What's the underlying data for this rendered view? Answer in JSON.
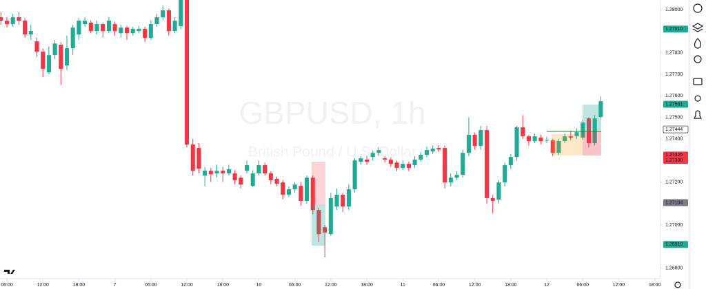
{
  "symbol_title": "GBPUSD, 1h",
  "symbol_description": "British Pound / U.S. Dollar",
  "chart_data": {
    "type": "candlestick",
    "up_color": "#22ab94",
    "down_color": "#f23645",
    "open": [
      1.27965,
      1.27949,
      1.27933,
      1.27965,
      1.27949,
      1.27885,
      1.27853,
      1.27805,
      1.27709,
      1.27789,
      1.27837,
      1.27741,
      1.27821,
      1.27885,
      1.27933,
      1.2794,
      1.27901,
      1.27933,
      1.27901,
      1.27933,
      1.27891,
      1.27917,
      1.27891,
      1.27901,
      1.27911,
      1.27869,
      1.27933,
      1.27965,
      1.27997,
      1.27901,
      1.27923,
      1.28045,
      1.27374,
      1.27358,
      1.2723,
      1.27252,
      1.2724,
      1.27252,
      1.2724,
      1.2724,
      1.2722,
      1.27252,
      1.27182,
      1.2724,
      1.27278,
      1.2724,
      1.27215,
      1.27198,
      1.27141,
      1.27166,
      1.27182,
      1.27112,
      1.2722,
      1.2707,
      1.2699,
      1.26958,
      1.27086,
      1.27141,
      1.27086,
      1.27166,
      1.27294,
      1.27304,
      1.27316,
      1.27335,
      1.2731,
      1.27304,
      1.2729,
      1.27265,
      1.27284,
      1.27278,
      1.27304,
      1.27326,
      1.27342,
      1.27358,
      1.27358,
      1.27198,
      1.2722,
      1.27233,
      1.27335,
      1.27419,
      1.27367,
      1.27441,
      1.27125,
      1.27118,
      1.27198,
      1.27278,
      1.27316,
      1.27454,
      1.27412,
      1.2739,
      1.27406,
      1.27393,
      1.27393,
      1.27335,
      1.2739,
      1.27412,
      1.27412,
      1.27406,
      1.27495,
      1.2738,
      1.27502
    ],
    "high": [
      1.2799,
      1.27965,
      1.27981,
      1.2799,
      1.2796,
      1.2793,
      1.2787,
      1.2782,
      1.2783,
      1.2786,
      1.2785,
      1.2788,
      1.2793,
      1.2796,
      1.27965,
      1.2795,
      1.2795,
      1.2794,
      1.27965,
      1.27945,
      1.2793,
      1.27925,
      1.2792,
      1.27925,
      1.2792,
      1.2795,
      1.2798,
      1.2802,
      1.28005,
      1.27965,
      1.28045,
      1.28045,
      1.274,
      1.2738,
      1.2727,
      1.27265,
      1.2728,
      1.2727,
      1.2728,
      1.27255,
      1.2723,
      1.273,
      1.27255,
      1.273,
      1.2729,
      1.2725,
      1.27225,
      1.2721,
      1.2718,
      1.272,
      1.272,
      1.2723,
      1.2723,
      1.2708,
      1.27,
      1.2715,
      1.2717,
      1.2715,
      1.2719,
      1.2731,
      1.2732,
      1.2732,
      1.27345,
      1.2736,
      1.2732,
      1.27315,
      1.273,
      1.273,
      1.27295,
      1.2732,
      1.2734,
      1.27365,
      1.2737,
      1.2737,
      1.2737,
      1.2724,
      1.2725,
      1.2735,
      1.275,
      1.2743,
      1.2746,
      1.2746,
      1.2714,
      1.2721,
      1.2729,
      1.2733,
      1.2746,
      1.2751,
      1.2742,
      1.27425,
      1.2742,
      1.2741,
      1.274,
      1.274,
      1.27425,
      1.2744,
      1.2745,
      1.2749,
      1.275,
      1.2751,
      1.27597
    ],
    "low": [
      1.2793,
      1.27917,
      1.2792,
      1.2793,
      1.2787,
      1.2786,
      1.2778,
      1.27687,
      1.277,
      1.2777,
      1.2765,
      1.2772,
      1.2779,
      1.2786,
      1.2792,
      1.2789,
      1.27885,
      1.2787,
      1.2789,
      1.2788,
      1.2787,
      1.2786,
      1.2788,
      1.2789,
      1.2785,
      1.2786,
      1.2792,
      1.2795,
      1.2788,
      1.2789,
      1.2791,
      1.2736,
      1.2723,
      1.2724,
      1.2718,
      1.272,
      1.2722,
      1.272,
      1.2723,
      1.2719,
      1.2717,
      1.2724,
      1.27175,
      1.2723,
      1.2723,
      1.2719,
      1.2718,
      1.2712,
      1.2713,
      1.2715,
      1.2709,
      1.271,
      1.2705,
      1.2692,
      1.2685,
      1.2695,
      1.2707,
      1.2706,
      1.2707,
      1.2715,
      1.2728,
      1.2728,
      1.273,
      1.2732,
      1.2729,
      1.2727,
      1.2725,
      1.27255,
      1.2725,
      1.27265,
      1.27295,
      1.27315,
      1.2733,
      1.2734,
      1.2717,
      1.2718,
      1.2721,
      1.2722,
      1.2732,
      1.2735,
      1.2735,
      1.271,
      1.27054,
      1.271,
      1.2718,
      1.2726,
      1.273,
      1.274,
      1.2737,
      1.2738,
      1.27375,
      1.2738,
      1.2732,
      1.27325,
      1.2738,
      1.27395,
      1.274,
      1.27395,
      1.2736,
      1.2737,
      1.27495
    ],
    "close": [
      1.27949,
      1.27933,
      1.27965,
      1.27949,
      1.27885,
      1.27901,
      1.27805,
      1.27725,
      1.27789,
      1.27843,
      1.27725,
      1.27821,
      1.27917,
      1.27949,
      1.27949,
      1.27901,
      1.27933,
      1.27901,
      1.27949,
      1.27901,
      1.27917,
      1.27891,
      1.27911,
      1.27911,
      1.27869,
      1.27933,
      1.27965,
      1.27997,
      1.27901,
      1.27949,
      1.28045,
      1.27374,
      1.27252,
      1.27262,
      1.27252,
      1.27236,
      1.27252,
      1.2724,
      1.27259,
      1.27208,
      1.27188,
      1.27278,
      1.2724,
      1.27278,
      1.2724,
      1.27208,
      1.27192,
      1.27141,
      1.27166,
      1.27188,
      1.27112,
      1.2722,
      1.2707,
      1.26958,
      1.26965,
      1.27125,
      1.27141,
      1.27086,
      1.27166,
      1.273,
      1.2731,
      1.27294,
      1.27335,
      1.27348,
      1.27304,
      1.27284,
      1.27265,
      1.27284,
      1.27265,
      1.27304,
      1.27326,
      1.27348,
      1.27355,
      1.27351,
      1.27198,
      1.2722,
      1.27233,
      1.27335,
      1.27419,
      1.27367,
      1.27441,
      1.27125,
      1.27112,
      1.27198,
      1.27278,
      1.27316,
      1.27454,
      1.27412,
      1.2739,
      1.27412,
      1.2739,
      1.27395,
      1.27335,
      1.2739,
      1.27412,
      1.27406,
      1.27431,
      1.27476,
      1.2738,
      1.27495,
      1.27575
    ],
    "xlim": [
      -0.15,
      109.96
    ],
    "ylim": [
      1.26751,
      1.28045
    ],
    "xticks": [
      {
        "value": 1,
        "label": "06:00"
      },
      {
        "value": 7,
        "label": "12:00"
      },
      {
        "value": 13,
        "label": "18:00"
      },
      {
        "value": 19,
        "label": "7"
      },
      {
        "value": 25,
        "label": "06:00"
      },
      {
        "value": 31,
        "label": "12:00"
      },
      {
        "value": 37,
        "label": "18:00"
      },
      {
        "value": 43,
        "label": "10"
      },
      {
        "value": 49,
        "label": "06:00"
      },
      {
        "value": 55,
        "label": "12:00"
      },
      {
        "value": 61,
        "label": "18:00"
      },
      {
        "value": 67,
        "label": "11"
      },
      {
        "value": 73,
        "label": "06:00"
      },
      {
        "value": 79,
        "label": "12:00"
      },
      {
        "value": 85,
        "label": "18:00"
      },
      {
        "value": 91,
        "label": "12"
      },
      {
        "value": 97,
        "label": "06:00"
      },
      {
        "value": 103,
        "label": "12:00"
      },
      {
        "value": 109,
        "label": "18:00"
      }
    ],
    "yticks": [
      {
        "value": 1.28,
        "label": "1.28000"
      },
      {
        "value": 1.278,
        "label": "1.27800"
      },
      {
        "value": 1.277,
        "label": "1.27700"
      },
      {
        "value": 1.276,
        "label": "1.27600"
      },
      {
        "value": 1.275,
        "label": "1.27500"
      },
      {
        "value": 1.274,
        "label": "1.27400"
      },
      {
        "value": 1.272,
        "label": "1.27200"
      },
      {
        "value": 1.27,
        "label": "1.27000"
      },
      {
        "value": 1.268,
        "label": "1.26800"
      }
    ],
    "price_labels": [
      {
        "value": 1.2791,
        "label": "1.27910",
        "color": "#22ab94"
      },
      {
        "value": 1.27561,
        "label": "1.27561",
        "color": "#22ab94"
      },
      {
        "value": 1.27444,
        "label": "1.27444",
        "color": "#ffffff"
      },
      {
        "value": 1.27325,
        "label": "1.27325",
        "color": "#f23645"
      },
      {
        "value": 1.273,
        "label": "1.27300",
        "color": "#f23645"
      },
      {
        "value": 1.27104,
        "label": "1.27104",
        "color": "#787b86"
      },
      {
        "value": 1.2691,
        "label": "1.26910",
        "color": "#22ab94"
      }
    ]
  }
}
